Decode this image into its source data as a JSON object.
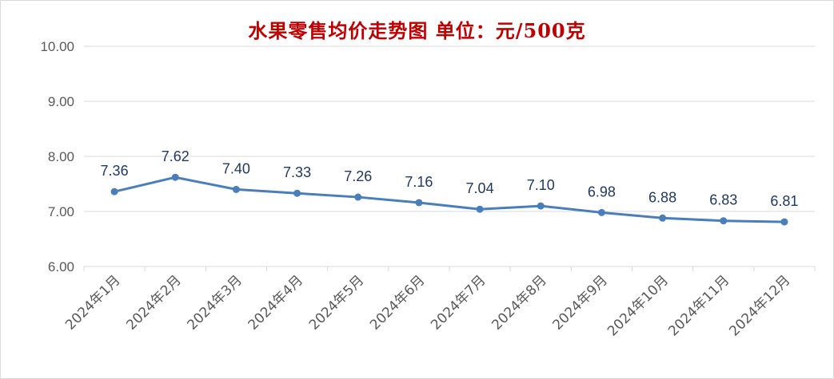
{
  "chart_data": {
    "type": "line",
    "title": "水果零售均价走势图   单位：元/500克",
    "categories": [
      "2024年1月",
      "2024年2月",
      "2024年3月",
      "2024年4月",
      "2024年5月",
      "2024年6月",
      "2024年7月",
      "2024年8月",
      "2024年9月",
      "2024年10月",
      "2024年11月",
      "2024年12月"
    ],
    "series": [
      {
        "values": [
          7.36,
          7.62,
          7.4,
          7.33,
          7.26,
          7.16,
          7.04,
          7.1,
          6.98,
          6.88,
          6.83,
          6.81
        ]
      }
    ],
    "data_labels": [
      "7.36",
      "7.62",
      "7.40",
      "7.33",
      "7.26",
      "7.16",
      "7.04",
      "7.10",
      "6.98",
      "6.88",
      "6.83",
      "6.81"
    ],
    "yticks": [
      "6.00",
      "7.00",
      "8.00",
      "9.00",
      "10.00"
    ],
    "ylim": [
      6,
      10
    ],
    "grid": true,
    "line_color": "#4a7ebb",
    "title_color": "#c00000",
    "label_color": "#1f3864"
  }
}
